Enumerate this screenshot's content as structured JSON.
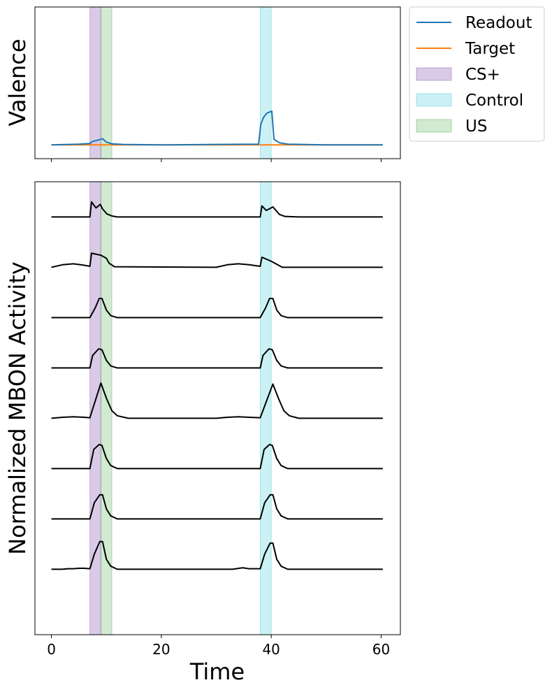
{
  "chart_data": [
    {
      "type": "line",
      "panel": "top",
      "ylabel": "Valence",
      "xlim": [
        -3,
        63.5
      ],
      "ylim": [
        -0.1,
        1.0
      ],
      "yticks_shown": false,
      "xtick_labels_shown": false,
      "shaded_regions": [
        {
          "name": "CS+",
          "x0": 7,
          "x1": 9,
          "color": "#9467bd",
          "alpha": 0.35
        },
        {
          "name": "Control",
          "x0": 38,
          "x1": 40,
          "color": "#17becf",
          "alpha": 0.22
        },
        {
          "name": "US",
          "x0": 9,
          "x1": 11,
          "color": "#2ca02c",
          "alpha": 0.22
        }
      ],
      "series": [
        {
          "name": "Readout",
          "color": "#1f77b4",
          "x": [
            0,
            5,
            7,
            7.5,
            8.5,
            9.3,
            10,
            11,
            13,
            20,
            30,
            37.7,
            38.1,
            38.6,
            39.2,
            40.1,
            40.5,
            41.5,
            43,
            50,
            60.3
          ],
          "y": [
            0.0,
            0.005,
            0.01,
            0.025,
            0.035,
            0.045,
            0.02,
            0.008,
            0.003,
            0.0,
            0.003,
            0.005,
            0.15,
            0.2,
            0.23,
            0.245,
            0.04,
            0.015,
            0.005,
            0.0,
            0.0
          ]
        },
        {
          "name": "Target",
          "color": "#ff7f0e",
          "x": [
            0,
            60.3
          ],
          "y": [
            0.0,
            0.0
          ]
        }
      ]
    },
    {
      "type": "line",
      "panel": "bottom",
      "ylabel": "Normalized MBON Activity",
      "xlabel": "Time",
      "xlim": [
        -3,
        63.5
      ],
      "ylim": [
        -8.3,
        0.7
      ],
      "xticks": [
        0,
        20,
        40,
        60
      ],
      "xtick_labels": [
        "0",
        "20",
        "40",
        "60"
      ],
      "yticks_shown": false,
      "line_color": "#000000",
      "shaded_regions": [
        {
          "name": "CS+",
          "x0": 7,
          "x1": 9
        },
        {
          "name": "Control",
          "x0": 38,
          "x1": 40
        },
        {
          "name": "US",
          "x0": 9,
          "x1": 11
        }
      ],
      "series": [
        {
          "offset": 0,
          "x": [
            0,
            7,
            7.3,
            8.1,
            8.9,
            9.3,
            10.1,
            11,
            12,
            14,
            38,
            38.3,
            39.1,
            40.3,
            41.5,
            42.5,
            45,
            60.3
          ],
          "y": [
            0,
            0,
            0.3,
            0.18,
            0.25,
            0.16,
            0.06,
            0.02,
            0,
            0,
            0,
            0.22,
            0.13,
            0.2,
            0.05,
            0.01,
            0,
            0
          ]
        },
        {
          "offset": -1,
          "x": [
            0,
            2,
            4,
            6,
            7,
            7.3,
            9,
            10,
            10.5,
            11.5,
            30,
            32,
            34,
            36,
            38,
            38.3,
            40,
            42,
            44,
            60.3
          ],
          "y": [
            0,
            0.05,
            0.07,
            0.04,
            0.02,
            0.28,
            0.24,
            0.18,
            0.08,
            0.01,
            0,
            0.05,
            0.07,
            0.05,
            0.02,
            0.2,
            0.12,
            0,
            0,
            0
          ]
        },
        {
          "offset": -2,
          "x": [
            0,
            7,
            8,
            8.7,
            9.2,
            10,
            10.8,
            12,
            38,
            39,
            39.7,
            40.3,
            41,
            41.8,
            43,
            60.3
          ],
          "y": [
            0,
            0,
            0.2,
            0.38,
            0.38,
            0.15,
            0.04,
            0,
            0,
            0.2,
            0.38,
            0.38,
            0.15,
            0.04,
            0,
            0
          ]
        },
        {
          "offset": -3,
          "x": [
            0,
            7,
            7.5,
            8.6,
            9.2,
            10,
            10.8,
            12,
            38,
            38.5,
            39.6,
            40.2,
            41,
            41.8,
            43,
            60.3
          ],
          "y": [
            0,
            0,
            0.25,
            0.38,
            0.36,
            0.15,
            0.04,
            0,
            0,
            0.25,
            0.38,
            0.36,
            0.15,
            0.04,
            0,
            0
          ]
        },
        {
          "offset": -4,
          "x": [
            0,
            2,
            4,
            6,
            7,
            9,
            10,
            11,
            12,
            14,
            30,
            32,
            34,
            36,
            38,
            40.3,
            41.3,
            42.3,
            43.3,
            45,
            60.3
          ],
          "y": [
            0,
            0.02,
            0.03,
            0.02,
            0.01,
            0.7,
            0.4,
            0.15,
            0.05,
            0,
            0,
            0.02,
            0.03,
            0.02,
            0.01,
            0.68,
            0.4,
            0.15,
            0.05,
            0,
            0
          ]
        },
        {
          "offset": -5,
          "x": [
            0,
            7,
            7.7,
            8.7,
            9.2,
            10,
            10.8,
            12,
            38,
            38.7,
            39.7,
            40.2,
            41,
            41.8,
            43,
            60.3
          ],
          "y": [
            0,
            0,
            0.38,
            0.48,
            0.46,
            0.2,
            0.06,
            0,
            0,
            0.38,
            0.48,
            0.46,
            0.2,
            0.06,
            0,
            0
          ]
        },
        {
          "offset": -6,
          "x": [
            0,
            7,
            7.8,
            8.8,
            9.3,
            10,
            10.8,
            12,
            38,
            38.8,
            39.8,
            40.3,
            41,
            41.8,
            43,
            60.3
          ],
          "y": [
            0,
            0,
            0.32,
            0.48,
            0.48,
            0.2,
            0.06,
            0,
            0,
            0.32,
            0.48,
            0.48,
            0.2,
            0.06,
            0,
            0
          ]
        },
        {
          "offset": -7,
          "x": [
            0,
            2,
            3,
            4,
            5,
            6,
            7,
            7.8,
            8.8,
            9.3,
            10,
            10.8,
            12,
            30,
            33,
            34.8,
            36,
            38,
            38.8,
            39.8,
            40.3,
            41,
            41.8,
            43,
            60.3
          ],
          "y": [
            0,
            0,
            0.01,
            0.01,
            0.02,
            0.02,
            0.01,
            0.3,
            0.55,
            0.55,
            0.2,
            0.06,
            0,
            0,
            0,
            0.03,
            0.01,
            0.01,
            0.3,
            0.52,
            0.52,
            0.2,
            0.06,
            0,
            0
          ]
        }
      ]
    }
  ],
  "legend": {
    "placement": "outside-top-right",
    "entries": [
      {
        "label": "Readout",
        "kind": "line",
        "color": "#1f77b4"
      },
      {
        "label": "Target",
        "kind": "line",
        "color": "#ff7f0e"
      },
      {
        "label": "CS+",
        "kind": "patch",
        "color": "#9467bd",
        "alpha": 0.35
      },
      {
        "label": "Control",
        "kind": "patch",
        "color": "#17becf",
        "alpha": 0.22
      },
      {
        "label": "US",
        "kind": "patch",
        "color": "#2ca02c",
        "alpha": 0.22
      }
    ]
  }
}
